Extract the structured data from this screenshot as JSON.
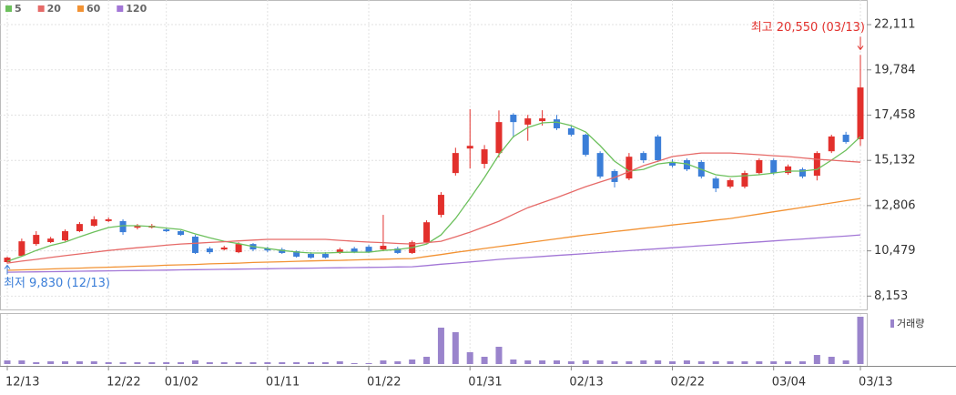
{
  "chart_data": {
    "type": "candlestick",
    "categories": [
      "12/13",
      null,
      null,
      null,
      null,
      null,
      null,
      "12/22",
      null,
      null,
      null,
      "01/02",
      null,
      null,
      null,
      null,
      null,
      null,
      "01/11",
      null,
      null,
      null,
      null,
      null,
      null,
      "01/22",
      null,
      null,
      null,
      null,
      null,
      null,
      "01/31",
      null,
      null,
      null,
      null,
      null,
      null,
      "02/13",
      null,
      null,
      null,
      null,
      null,
      null,
      "02/22",
      null,
      null,
      null,
      null,
      null,
      null,
      "03/04",
      null,
      null,
      null,
      null,
      null,
      "03/13"
    ],
    "open": [
      9900,
      10220,
      10830,
      10930,
      11020,
      11490,
      11770,
      12010,
      12010,
      11670,
      11680,
      11580,
      11490,
      11210,
      10600,
      10550,
      10410,
      10830,
      10600,
      10550,
      10460,
      10320,
      10320,
      10370,
      10600,
      10690,
      10550,
      10600,
      10370,
      10920,
      12330,
      14480,
      15740,
      14950,
      15510,
      17480,
      16970,
      17150,
      17240,
      16780,
      16450,
      15510,
      14580,
      14200,
      15510,
      16360,
      15050,
      15140,
      15050,
      14200,
      13780,
      13780,
      14480,
      15140,
      14480,
      14670,
      14340,
      15600,
      16450,
      16220
    ],
    "high": [
      10180,
      11110,
      11490,
      11200,
      11580,
      11960,
      12260,
      12200,
      12100,
      11860,
      11860,
      11670,
      11530,
      11300,
      10690,
      10740,
      10920,
      10880,
      10690,
      10640,
      10500,
      10410,
      10410,
      10640,
      10690,
      10780,
      12330,
      10690,
      11010,
      12050,
      13500,
      15780,
      17760,
      15920,
      17700,
      17560,
      17470,
      17710,
      17470,
      16920,
      16500,
      15600,
      14670,
      15510,
      15600,
      16450,
      15190,
      15230,
      15140,
      14300,
      14200,
      14600,
      15230,
      15230,
      14920,
      14760,
      15600,
      16450,
      16600,
      20550
    ],
    "low": [
      9830,
      10180,
      10740,
      10880,
      10970,
      11440,
      11720,
      11960,
      11300,
      11580,
      11630,
      11440,
      11250,
      10320,
      10320,
      10500,
      10360,
      10460,
      10410,
      10320,
      10130,
      10080,
      10080,
      10320,
      10360,
      10360,
      10460,
      10320,
      10320,
      10870,
      12200,
      14350,
      14720,
      14720,
      15280,
      16300,
      16140,
      16920,
      16690,
      16360,
      15330,
      14200,
      13740,
      14110,
      15000,
      15050,
      14770,
      14580,
      14200,
      13500,
      13690,
      13690,
      14390,
      14390,
      14390,
      14210,
      14100,
      15510,
      15990,
      15880
    ],
    "close": [
      10130,
      10970,
      11300,
      11110,
      11490,
      11860,
      12100,
      12100,
      11440,
      11770,
      11770,
      11490,
      11300,
      10370,
      10410,
      10650,
      10830,
      10550,
      10500,
      10370,
      10180,
      10130,
      10130,
      10550,
      10410,
      10410,
      10740,
      10370,
      10920,
      11950,
      13360,
      15510,
      15880,
      15700,
      17100,
      17100,
      17290,
      17290,
      16780,
      16450,
      15420,
      14300,
      14020,
      15320,
      15140,
      15140,
      14860,
      14670,
      14300,
      13690,
      14110,
      14480,
      15140,
      14480,
      14820,
      14300,
      15510,
      16360,
      16080,
      18880
    ],
    "up_color": "#e2302c",
    "down_color": "#3b7ed8",
    "ma_series": [
      {
        "name": "5",
        "color": "#6cc05c",
        "values": [
          9940,
          10200,
          10500,
          10750,
          10930,
          11200,
          11450,
          11680,
          11770,
          11770,
          11730,
          11650,
          11580,
          11350,
          11150,
          10970,
          10850,
          10700,
          10600,
          10500,
          10420,
          10370,
          10370,
          10400,
          10410,
          10410,
          10500,
          10550,
          10650,
          10830,
          11300,
          12140,
          13170,
          14250,
          15420,
          16350,
          16820,
          17060,
          17100,
          16920,
          16590,
          15890,
          15090,
          14580,
          14670,
          14950,
          15040,
          14950,
          14670,
          14390,
          14300,
          14340,
          14390,
          14480,
          14580,
          14580,
          14670,
          15140,
          15650,
          16350
        ]
      },
      {
        "name": "20",
        "color": "#e66a68",
        "values": [
          9850,
          9950,
          10040,
          10140,
          10230,
          10320,
          10410,
          10500,
          10570,
          10640,
          10700,
          10770,
          10830,
          10870,
          10910,
          10950,
          10990,
          11030,
          11070,
          11070,
          11070,
          11070,
          11070,
          11020,
          10970,
          10930,
          10900,
          10860,
          10830,
          10900,
          10970,
          11200,
          11440,
          11720,
          12000,
          12350,
          12700,
          12960,
          13220,
          13500,
          13780,
          14020,
          14250,
          14550,
          14860,
          15090,
          15330,
          15420,
          15510,
          15510,
          15510,
          15470,
          15420,
          15370,
          15330,
          15260,
          15190,
          15140,
          15090,
          15040
        ]
      },
      {
        "name": "60",
        "color": "#f29233",
        "values": [
          9480,
          9500,
          9520,
          9550,
          9570,
          9590,
          9620,
          9640,
          9660,
          9690,
          9710,
          9740,
          9760,
          9780,
          9810,
          9830,
          9850,
          9880,
          9900,
          9920,
          9940,
          9960,
          9980,
          9990,
          10010,
          10030,
          10050,
          10070,
          10080,
          10190,
          10290,
          10400,
          10500,
          10600,
          10700,
          10800,
          10900,
          11000,
          11100,
          11200,
          11300,
          11380,
          11470,
          11550,
          11640,
          11720,
          11810,
          11890,
          11970,
          12060,
          12140,
          12260,
          12370,
          12490,
          12600,
          12710,
          12830,
          12940,
          13060,
          13170
        ]
      },
      {
        "name": "120",
        "color": "#a276d6",
        "values": [
          9380,
          9390,
          9400,
          9410,
          9420,
          9430,
          9440,
          9450,
          9460,
          9470,
          9480,
          9490,
          9500,
          9510,
          9520,
          9530,
          9540,
          9550,
          9560,
          9570,
          9580,
          9590,
          9600,
          9610,
          9620,
          9630,
          9640,
          9650,
          9660,
          9720,
          9790,
          9850,
          9910,
          9970,
          10040,
          10090,
          10140,
          10190,
          10240,
          10290,
          10340,
          10390,
          10440,
          10490,
          10540,
          10590,
          10640,
          10690,
          10740,
          10790,
          10840,
          10890,
          10940,
          10990,
          11040,
          11090,
          11140,
          11190,
          11240,
          11300
        ]
      }
    ],
    "volume": {
      "name": "거래량",
      "color": "#9a84cc",
      "values": [
        4,
        4,
        2,
        3,
        3,
        3,
        3,
        2,
        2,
        2,
        2,
        2,
        2,
        4,
        2,
        2,
        2,
        2,
        2,
        2,
        2,
        2,
        2,
        3,
        1,
        1,
        4,
        3,
        5,
        8,
        40,
        35,
        13,
        8,
        19,
        5,
        4,
        4,
        4,
        3,
        4,
        4,
        3,
        3,
        4,
        4,
        3,
        4,
        3,
        3,
        3,
        3,
        3,
        3,
        3,
        3,
        10,
        8,
        4,
        52
      ]
    },
    "high_label": "최고 20,550 (03/13)",
    "low_label": "최저 9,830 (12/13)",
    "ylim": [
      7560,
      23190
    ],
    "yticks": [
      {
        "value": 8153,
        "label": "8,153"
      },
      {
        "value": 10479,
        "label": "10,479"
      },
      {
        "value": 12806,
        "label": "12,806"
      },
      {
        "value": 15132,
        "label": "15,132"
      },
      {
        "value": 17458,
        "label": "17,458"
      },
      {
        "value": 19784,
        "label": "19,784"
      },
      {
        "value": 22111,
        "label": "22,111"
      }
    ],
    "grid": true
  }
}
